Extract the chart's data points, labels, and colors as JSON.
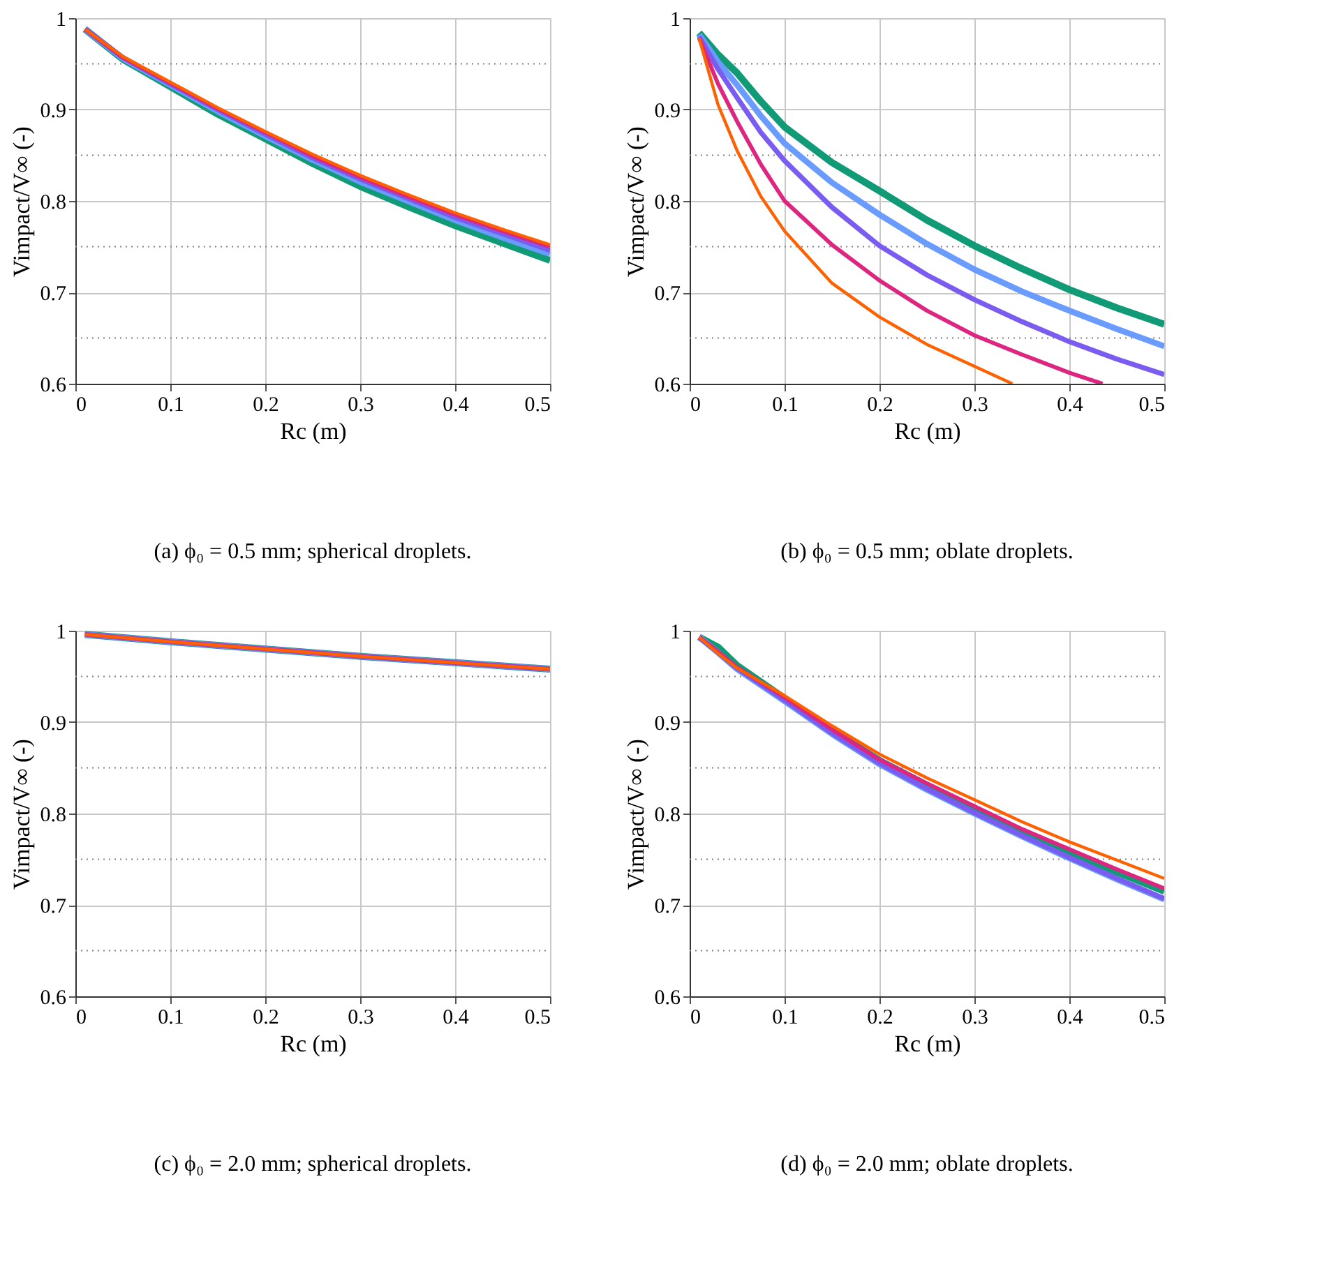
{
  "chart_data": [
    {
      "type": "line",
      "xlabel": "Rc (m)",
      "ylabel": "Vimpact/V∞ (-)",
      "annotations": [
        "(a) ϕ₀ = 0.5 mm; spherical droplets."
      ],
      "xlim": [
        0,
        0.5
      ],
      "ylim": [
        0.6,
        1
      ],
      "xticks": [
        0,
        0.1,
        0.2,
        0.3,
        0.4,
        0.5
      ],
      "yticks": [
        0.6,
        0.7,
        0.8,
        0.9,
        1
      ],
      "grid": true,
      "ref_lines": [
        {
          "axis": "y",
          "value": 0.95,
          "color": "#808080",
          "line_style": "dotted"
        },
        {
          "axis": "y",
          "value": 0.85,
          "color": "#808080",
          "line_style": "dotted"
        },
        {
          "axis": "y",
          "value": 0.75,
          "color": "#808080",
          "line_style": "dotted"
        },
        {
          "axis": "y",
          "value": 0.65,
          "color": "#808080",
          "line_style": "dotted"
        }
      ],
      "series": [
        {
          "color": "#119a76",
          "x": [
            0.01,
            0.05,
            0.1,
            0.15,
            0.2,
            0.25,
            0.3,
            0.35,
            0.4,
            0.45,
            0.5
          ],
          "values": [
            0.988,
            0.955,
            0.925,
            0.895,
            0.868,
            0.841,
            0.816,
            0.794,
            0.773,
            0.754,
            0.735
          ]
        },
        {
          "color": "#6a9bff",
          "x": [
            0.01,
            0.05,
            0.1,
            0.15,
            0.2,
            0.25,
            0.3,
            0.35,
            0.4,
            0.45,
            0.5
          ],
          "values": [
            0.988,
            0.956,
            0.927,
            0.898,
            0.871,
            0.845,
            0.821,
            0.8,
            0.779,
            0.76,
            0.742
          ]
        },
        {
          "color": "#7a5cf0",
          "x": [
            0.01,
            0.05,
            0.1,
            0.15,
            0.2,
            0.25,
            0.3,
            0.35,
            0.4,
            0.45,
            0.5
          ],
          "values": [
            0.988,
            0.957,
            0.928,
            0.9,
            0.873,
            0.847,
            0.824,
            0.803,
            0.782,
            0.764,
            0.746
          ]
        },
        {
          "color": "#dc267f",
          "x": [
            0.01,
            0.05,
            0.1,
            0.15,
            0.2,
            0.25,
            0.3,
            0.35,
            0.4,
            0.45,
            0.5
          ],
          "values": [
            0.988,
            0.957,
            0.929,
            0.901,
            0.875,
            0.849,
            0.826,
            0.805,
            0.785,
            0.767,
            0.75
          ]
        },
        {
          "color": "#fe6100",
          "x": [
            0.01,
            0.05,
            0.1,
            0.15,
            0.2,
            0.25,
            0.3,
            0.35,
            0.4,
            0.45,
            0.5
          ],
          "values": [
            0.988,
            0.958,
            0.93,
            0.902,
            0.876,
            0.851,
            0.828,
            0.807,
            0.787,
            0.769,
            0.752
          ]
        }
      ]
    },
    {
      "type": "line",
      "xlabel": "Rc (m)",
      "ylabel": "Vimpact/V∞ (-)",
      "annotations": [
        "(b) ϕ₀ = 0.5 mm; oblate droplets."
      ],
      "xlim": [
        0,
        0.5
      ],
      "ylim": [
        0.6,
        1
      ],
      "xticks": [
        0,
        0.1,
        0.2,
        0.3,
        0.4,
        0.5
      ],
      "yticks": [
        0.6,
        0.7,
        0.8,
        0.9,
        1
      ],
      "grid": true,
      "ref_lines": [
        {
          "axis": "y",
          "value": 0.95,
          "color": "#808080",
          "line_style": "dotted"
        },
        {
          "axis": "y",
          "value": 0.85,
          "color": "#808080",
          "line_style": "dotted"
        },
        {
          "axis": "y",
          "value": 0.75,
          "color": "#808080",
          "line_style": "dotted"
        },
        {
          "axis": "y",
          "value": 0.65,
          "color": "#808080",
          "line_style": "dotted"
        }
      ],
      "series": [
        {
          "color": "#119a76",
          "x": [
            0.01,
            0.03,
            0.05,
            0.075,
            0.1,
            0.15,
            0.2,
            0.25,
            0.3,
            0.35,
            0.4,
            0.45,
            0.5
          ],
          "values": [
            0.984,
            0.96,
            0.94,
            0.909,
            0.881,
            0.842,
            0.811,
            0.779,
            0.751,
            0.726,
            0.703,
            0.683,
            0.665
          ]
        },
        {
          "color": "#6a9bff",
          "x": [
            0.01,
            0.03,
            0.05,
            0.075,
            0.1,
            0.15,
            0.2,
            0.25,
            0.3,
            0.35,
            0.4,
            0.45,
            0.5
          ],
          "values": [
            0.982,
            0.952,
            0.927,
            0.893,
            0.863,
            0.82,
            0.785,
            0.753,
            0.725,
            0.701,
            0.68,
            0.66,
            0.641
          ]
        },
        {
          "color": "#7a5cf0",
          "x": [
            0.01,
            0.03,
            0.05,
            0.075,
            0.1,
            0.15,
            0.2,
            0.25,
            0.3,
            0.35,
            0.4,
            0.45,
            0.5
          ],
          "values": [
            0.98,
            0.944,
            0.913,
            0.875,
            0.844,
            0.793,
            0.751,
            0.719,
            0.692,
            0.668,
            0.646,
            0.627,
            0.61
          ]
        },
        {
          "color": "#dc267f",
          "x": [
            0.01,
            0.03,
            0.05,
            0.075,
            0.1,
            0.15,
            0.2,
            0.25,
            0.3,
            0.35,
            0.4,
            0.435
          ],
          "values": [
            0.978,
            0.928,
            0.887,
            0.84,
            0.8,
            0.752,
            0.713,
            0.68,
            0.653,
            0.632,
            0.612,
            0.6
          ]
        },
        {
          "color": "#fe6100",
          "x": [
            0.01,
            0.03,
            0.05,
            0.075,
            0.1,
            0.15,
            0.2,
            0.25,
            0.3,
            0.34
          ],
          "values": [
            0.978,
            0.905,
            0.855,
            0.805,
            0.767,
            0.71,
            0.673,
            0.643,
            0.619,
            0.6
          ]
        }
      ]
    },
    {
      "type": "line",
      "xlabel": "Rc (m)",
      "ylabel": "Vimpact/V∞ (-)",
      "annotations": [
        "(c) ϕ₀ = 2.0 mm; spherical droplets."
      ],
      "xlim": [
        0,
        0.5
      ],
      "ylim": [
        0.6,
        1
      ],
      "xticks": [
        0,
        0.1,
        0.2,
        0.3,
        0.4,
        0.5
      ],
      "yticks": [
        0.6,
        0.7,
        0.8,
        0.9,
        1
      ],
      "grid": true,
      "ref_lines": [
        {
          "axis": "y",
          "value": 0.95,
          "color": "#808080",
          "line_style": "dotted"
        },
        {
          "axis": "y",
          "value": 0.85,
          "color": "#808080",
          "line_style": "dotted"
        },
        {
          "axis": "y",
          "value": 0.75,
          "color": "#808080",
          "line_style": "dotted"
        },
        {
          "axis": "y",
          "value": 0.65,
          "color": "#808080",
          "line_style": "dotted"
        }
      ],
      "series": [
        {
          "color": "#119a76",
          "x": [
            0.01,
            0.1,
            0.2,
            0.3,
            0.4,
            0.5
          ],
          "values": [
            0.996,
            0.988,
            0.98,
            0.972,
            0.965,
            0.958
          ]
        },
        {
          "color": "#6a9bff",
          "x": [
            0.01,
            0.1,
            0.2,
            0.3,
            0.4,
            0.5
          ],
          "values": [
            0.996,
            0.988,
            0.98,
            0.972,
            0.965,
            0.958
          ]
        },
        {
          "color": "#7a5cf0",
          "x": [
            0.01,
            0.1,
            0.2,
            0.3,
            0.4,
            0.5
          ],
          "values": [
            0.996,
            0.988,
            0.98,
            0.972,
            0.965,
            0.958
          ]
        },
        {
          "color": "#dc267f",
          "x": [
            0.01,
            0.1,
            0.2,
            0.3,
            0.4,
            0.5
          ],
          "values": [
            0.996,
            0.988,
            0.98,
            0.972,
            0.965,
            0.958
          ]
        },
        {
          "color": "#fe6100",
          "x": [
            0.01,
            0.1,
            0.2,
            0.3,
            0.4,
            0.5
          ],
          "values": [
            0.996,
            0.988,
            0.98,
            0.972,
            0.965,
            0.958
          ]
        }
      ]
    },
    {
      "type": "line",
      "xlabel": "Rc (m)",
      "ylabel": "Vimpact/V∞ (-)",
      "annotations": [
        "(d) ϕ₀ = 2.0 mm; oblate droplets."
      ],
      "xlim": [
        0,
        0.5
      ],
      "ylim": [
        0.6,
        1
      ],
      "xticks": [
        0,
        0.1,
        0.2,
        0.3,
        0.4,
        0.5
      ],
      "yticks": [
        0.6,
        0.7,
        0.8,
        0.9,
        1
      ],
      "grid": true,
      "ref_lines": [
        {
          "axis": "y",
          "value": 0.95,
          "color": "#808080",
          "line_style": "dotted"
        },
        {
          "axis": "y",
          "value": 0.85,
          "color": "#808080",
          "line_style": "dotted"
        },
        {
          "axis": "y",
          "value": 0.75,
          "color": "#808080",
          "line_style": "dotted"
        },
        {
          "axis": "y",
          "value": 0.65,
          "color": "#808080",
          "line_style": "dotted"
        }
      ],
      "series": [
        {
          "color": "#119a76",
          "x": [
            0.01,
            0.03,
            0.05,
            0.1,
            0.15,
            0.2,
            0.25,
            0.3,
            0.35,
            0.4,
            0.45,
            0.5
          ],
          "values": [
            0.993,
            0.982,
            0.962,
            0.926,
            0.891,
            0.858,
            0.831,
            0.806,
            0.781,
            0.758,
            0.736,
            0.715
          ]
        },
        {
          "color": "#6a9bff",
          "x": [
            0.01,
            0.03,
            0.05,
            0.1,
            0.15,
            0.2,
            0.25,
            0.3,
            0.35,
            0.4,
            0.45,
            0.5
          ],
          "values": [
            0.993,
            0.976,
            0.958,
            0.923,
            0.887,
            0.854,
            0.826,
            0.8,
            0.775,
            0.751,
            0.728,
            0.706
          ]
        },
        {
          "color": "#7a5cf0",
          "x": [
            0.01,
            0.03,
            0.05,
            0.1,
            0.15,
            0.2,
            0.25,
            0.3,
            0.35,
            0.4,
            0.45,
            0.5
          ],
          "values": [
            0.993,
            0.976,
            0.959,
            0.924,
            0.888,
            0.855,
            0.827,
            0.801,
            0.776,
            0.752,
            0.729,
            0.707
          ]
        },
        {
          "color": "#dc267f",
          "x": [
            0.01,
            0.03,
            0.05,
            0.1,
            0.15,
            0.2,
            0.25,
            0.3,
            0.35,
            0.4,
            0.45,
            0.5
          ],
          "values": [
            0.993,
            0.977,
            0.96,
            0.927,
            0.892,
            0.859,
            0.833,
            0.808,
            0.783,
            0.761,
            0.739,
            0.718
          ]
        },
        {
          "color": "#fe6100",
          "x": [
            0.01,
            0.03,
            0.05,
            0.1,
            0.15,
            0.2,
            0.25,
            0.3,
            0.35,
            0.4,
            0.45,
            0.5
          ],
          "values": [
            0.993,
            0.975,
            0.959,
            0.929,
            0.896,
            0.865,
            0.839,
            0.815,
            0.791,
            0.769,
            0.749,
            0.729
          ]
        }
      ]
    }
  ]
}
